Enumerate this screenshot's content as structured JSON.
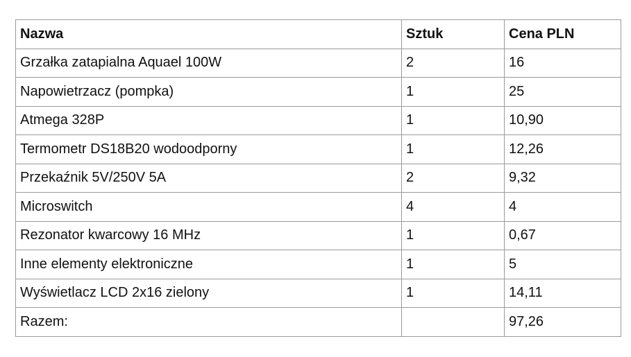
{
  "table": {
    "headers": [
      "Nazwa",
      "Sztuk",
      "Cena PLN"
    ],
    "rows": [
      [
        "Grzałka zatapialna Aquael 100W",
        "2",
        "16"
      ],
      [
        "Napowietrzacz (pompka)",
        "1",
        "25"
      ],
      [
        "Atmega 328P",
        "1",
        "10,90"
      ],
      [
        "Termometr DS18B20 wodoodporny",
        "1",
        "12,26"
      ],
      [
        "Przekaźnik 5V/250V 5A",
        "2",
        "9,32"
      ],
      [
        "Microswitch",
        "4",
        "4"
      ],
      [
        "Rezonator kwarcowy 16 MHz",
        "1",
        "0,67"
      ],
      [
        "Inne elementy elektroniczne",
        "1",
        "5"
      ],
      [
        "Wyświetlacz LCD 2x16 zielony",
        "1",
        "14,11"
      ],
      [
        "Razem:",
        "",
        "97,26"
      ]
    ]
  }
}
